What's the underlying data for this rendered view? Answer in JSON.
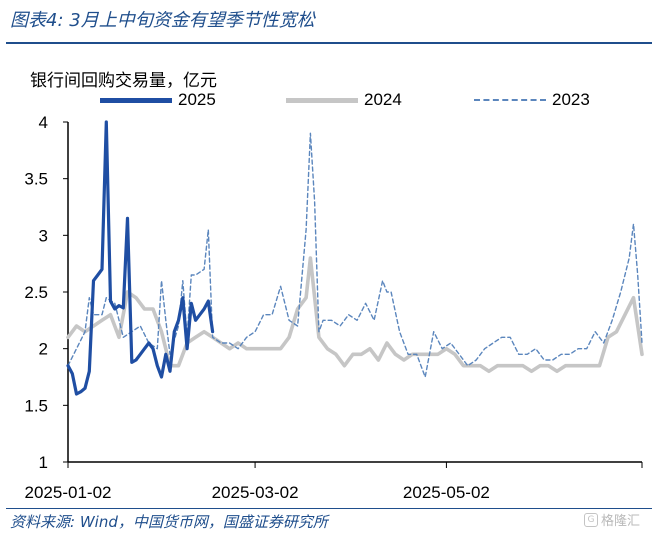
{
  "header": {
    "title": "图表4:  3月上中旬资金有望季节性宽松"
  },
  "footer": {
    "source": "资料来源:  Wind，中国货币网，国盛证券研究所",
    "watermark_text": "格隆汇"
  },
  "colors": {
    "s2025": "#1f4ea3",
    "s2024": "#c6c6c6",
    "s2023": "#5b86bd",
    "brand": "#1f4e8c"
  },
  "chart_data": {
    "type": "line",
    "ylabel": "银行间回购交易量，亿元",
    "ylim": [
      1,
      4
    ],
    "yticks": [
      "1",
      "1.5",
      "2",
      "2.5",
      "3",
      "3.5",
      "4"
    ],
    "xticks": [
      "2025-01-02",
      "2025-03-02",
      "2025-05-02"
    ],
    "x_unit": "trading days from 2025-01-02",
    "legend_position": "top",
    "series": [
      {
        "name": "2025",
        "style": "solid-thick",
        "points": [
          [
            0,
            1.85
          ],
          [
            1,
            1.78
          ],
          [
            2,
            1.6
          ],
          [
            3,
            1.62
          ],
          [
            4,
            1.65
          ],
          [
            5,
            1.8
          ],
          [
            6,
            2.6
          ],
          [
            7,
            2.65
          ],
          [
            8,
            2.7
          ],
          [
            9,
            4.0
          ],
          [
            10,
            2.42
          ],
          [
            11,
            2.35
          ],
          [
            12,
            2.38
          ],
          [
            13,
            2.36
          ],
          [
            14,
            3.15
          ],
          [
            15,
            1.88
          ],
          [
            16,
            1.9
          ],
          [
            17,
            1.95
          ],
          [
            18,
            2.0
          ],
          [
            19,
            2.05
          ],
          [
            20,
            2.0
          ],
          [
            21,
            1.85
          ],
          [
            22,
            1.75
          ],
          [
            23,
            1.95
          ],
          [
            24,
            1.8
          ],
          [
            25,
            2.15
          ],
          [
            26,
            2.25
          ],
          [
            27,
            2.45
          ],
          [
            28,
            2.0
          ],
          [
            29,
            2.4
          ],
          [
            30,
            2.25
          ],
          [
            31,
            2.3
          ],
          [
            32,
            2.35
          ],
          [
            33,
            2.42
          ],
          [
            34,
            2.15
          ]
        ]
      },
      {
        "name": "2024",
        "style": "solid-thick",
        "points": [
          [
            0,
            2.1
          ],
          [
            2,
            2.2
          ],
          [
            4,
            2.15
          ],
          [
            6,
            2.2
          ],
          [
            8,
            2.25
          ],
          [
            10,
            2.3
          ],
          [
            12,
            2.1
          ],
          [
            14,
            2.5
          ],
          [
            16,
            2.45
          ],
          [
            18,
            2.35
          ],
          [
            20,
            2.35
          ],
          [
            22,
            2.15
          ],
          [
            24,
            1.85
          ],
          [
            26,
            1.85
          ],
          [
            28,
            2.05
          ],
          [
            30,
            2.1
          ],
          [
            32,
            2.15
          ],
          [
            34,
            2.1
          ],
          [
            36,
            2.05
          ],
          [
            38,
            2.0
          ],
          [
            40,
            2.05
          ],
          [
            42,
            2.0
          ],
          [
            44,
            2.0
          ],
          [
            46,
            2.0
          ],
          [
            48,
            2.0
          ],
          [
            50,
            2.0
          ],
          [
            52,
            2.1
          ],
          [
            54,
            2.35
          ],
          [
            56,
            2.45
          ],
          [
            57,
            2.8
          ],
          [
            59,
            2.1
          ],
          [
            61,
            2.0
          ],
          [
            63,
            1.95
          ],
          [
            65,
            1.85
          ],
          [
            67,
            1.95
          ],
          [
            69,
            1.95
          ],
          [
            71,
            2.0
          ],
          [
            73,
            1.9
          ],
          [
            75,
            2.05
          ],
          [
            77,
            1.95
          ],
          [
            79,
            1.9
          ],
          [
            81,
            1.95
          ],
          [
            83,
            1.95
          ],
          [
            85,
            1.95
          ],
          [
            87,
            1.95
          ],
          [
            89,
            2.0
          ],
          [
            91,
            1.95
          ],
          [
            93,
            1.85
          ],
          [
            95,
            1.85
          ],
          [
            97,
            1.85
          ],
          [
            99,
            1.8
          ],
          [
            101,
            1.85
          ],
          [
            103,
            1.85
          ],
          [
            105,
            1.85
          ],
          [
            107,
            1.85
          ],
          [
            109,
            1.8
          ],
          [
            111,
            1.85
          ],
          [
            113,
            1.85
          ],
          [
            115,
            1.8
          ],
          [
            117,
            1.85
          ],
          [
            119,
            1.85
          ],
          [
            121,
            1.85
          ],
          [
            123,
            1.85
          ],
          [
            125,
            1.85
          ],
          [
            127,
            2.1
          ],
          [
            129,
            2.15
          ],
          [
            131,
            2.3
          ],
          [
            133,
            2.45
          ],
          [
            135,
            1.95
          ]
        ]
      },
      {
        "name": "2023",
        "style": "dashed",
        "points": [
          [
            0,
            1.85
          ],
          [
            2,
            2.0
          ],
          [
            4,
            2.15
          ],
          [
            5,
            2.45
          ],
          [
            6,
            2.3
          ],
          [
            8,
            2.3
          ],
          [
            9,
            2.45
          ],
          [
            11,
            2.4
          ],
          [
            13,
            2.1
          ],
          [
            15,
            2.15
          ],
          [
            17,
            2.2
          ],
          [
            19,
            2.05
          ],
          [
            21,
            2.0
          ],
          [
            22,
            2.6
          ],
          [
            23,
            2.25
          ],
          [
            24,
            1.95
          ],
          [
            26,
            2.2
          ],
          [
            27,
            2.6
          ],
          [
            28,
            2.1
          ],
          [
            29,
            2.65
          ],
          [
            30,
            2.65
          ],
          [
            32,
            2.7
          ],
          [
            33,
            3.05
          ],
          [
            34,
            2.1
          ],
          [
            36,
            2.05
          ],
          [
            38,
            2.05
          ],
          [
            40,
            2.0
          ],
          [
            42,
            2.1
          ],
          [
            44,
            2.15
          ],
          [
            46,
            2.3
          ],
          [
            48,
            2.3
          ],
          [
            50,
            2.55
          ],
          [
            52,
            2.25
          ],
          [
            54,
            2.2
          ],
          [
            56,
            3.05
          ],
          [
            57,
            3.9
          ],
          [
            58,
            3.3
          ],
          [
            59,
            2.15
          ],
          [
            60,
            2.25
          ],
          [
            62,
            2.25
          ],
          [
            64,
            2.2
          ],
          [
            66,
            2.3
          ],
          [
            68,
            2.25
          ],
          [
            70,
            2.4
          ],
          [
            72,
            2.25
          ],
          [
            74,
            2.6
          ],
          [
            75,
            2.5
          ],
          [
            76,
            2.5
          ],
          [
            78,
            2.15
          ],
          [
            80,
            1.95
          ],
          [
            82,
            1.95
          ],
          [
            84,
            1.75
          ],
          [
            86,
            2.15
          ],
          [
            88,
            2.0
          ],
          [
            90,
            2.05
          ],
          [
            92,
            1.95
          ],
          [
            94,
            1.85
          ],
          [
            96,
            1.9
          ],
          [
            98,
            2.0
          ],
          [
            100,
            2.05
          ],
          [
            102,
            2.1
          ],
          [
            104,
            2.1
          ],
          [
            106,
            1.95
          ],
          [
            108,
            1.95
          ],
          [
            110,
            2.0
          ],
          [
            112,
            1.9
          ],
          [
            114,
            1.9
          ],
          [
            116,
            1.95
          ],
          [
            118,
            1.95
          ],
          [
            120,
            2.0
          ],
          [
            122,
            2.0
          ],
          [
            124,
            2.15
          ],
          [
            126,
            2.05
          ],
          [
            128,
            2.25
          ],
          [
            130,
            2.5
          ],
          [
            132,
            2.8
          ],
          [
            133,
            3.1
          ],
          [
            134,
            2.65
          ],
          [
            135,
            2.05
          ]
        ]
      }
    ],
    "x_tick_positions": [
      0,
      44,
      89
    ],
    "x_max": 135
  }
}
